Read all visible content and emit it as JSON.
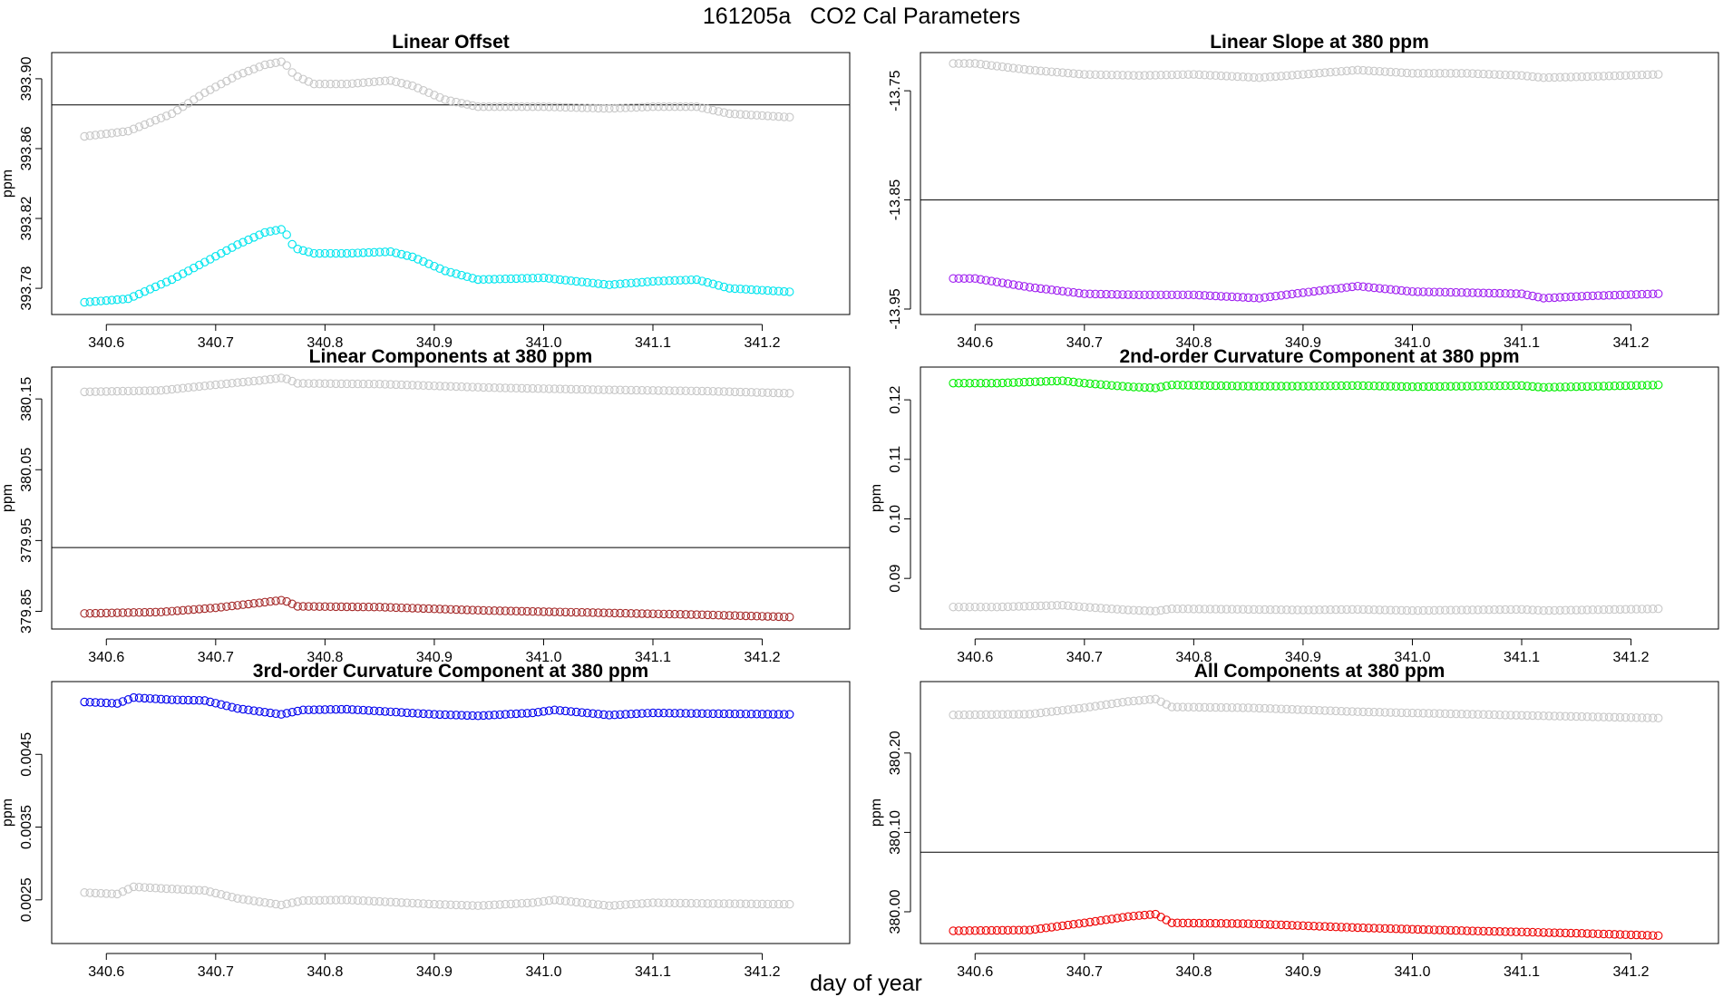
{
  "figure": {
    "title": "161205a   CO2 Cal Parameters",
    "xlabel": "day of year"
  },
  "chart_data": [
    {
      "type": "scatter",
      "title": "Linear Offset",
      "ylabel": "ppm",
      "xlim": [
        340.55,
        341.28
      ],
      "ylim": [
        393.765,
        393.915
      ],
      "x_ticks": [
        340.6,
        340.7,
        340.8,
        340.9,
        341.0,
        341.1,
        341.2
      ],
      "x_tick_labels": [
        "340.6",
        "340.7",
        "340.8",
        "340.9",
        "341.0",
        "341.1",
        "341.2"
      ],
      "y_ticks": [
        393.78,
        393.82,
        393.86,
        393.9
      ],
      "y_tick_labels": [
        "393.78",
        "393.82",
        "393.86",
        "393.90"
      ],
      "hline": 393.885,
      "x_range": [
        340.58,
        341.225
      ],
      "series": [
        {
          "color": "#c8c8c8",
          "shape": [
            [
              340.58,
              393.867
            ],
            [
              340.62,
              393.87
            ],
            [
              340.66,
              393.88
            ],
            [
              340.69,
              393.892
            ],
            [
              340.72,
              393.902
            ],
            [
              340.745,
              393.908
            ],
            [
              340.762,
              393.91
            ],
            [
              340.772,
              393.902
            ],
            [
              340.79,
              393.897
            ],
            [
              340.82,
              393.897
            ],
            [
              340.86,
              393.899
            ],
            [
              340.88,
              393.896
            ],
            [
              340.91,
              393.888
            ],
            [
              340.94,
              393.884
            ],
            [
              341.0,
              393.884
            ],
            [
              341.06,
              393.883
            ],
            [
              341.1,
              393.884
            ],
            [
              341.14,
              393.884
            ],
            [
              341.17,
              393.88
            ],
            [
              341.225,
              393.878
            ]
          ]
        },
        {
          "color": "#00e5ee",
          "shape": [
            [
              340.58,
              393.772
            ],
            [
              340.62,
              393.774
            ],
            [
              340.66,
              393.785
            ],
            [
              340.69,
              393.795
            ],
            [
              340.72,
              393.805
            ],
            [
              340.745,
              393.812
            ],
            [
              340.762,
              393.814
            ],
            [
              340.772,
              393.803
            ],
            [
              340.79,
              393.8
            ],
            [
              340.82,
              393.8
            ],
            [
              340.86,
              393.801
            ],
            [
              340.88,
              393.798
            ],
            [
              340.91,
              393.79
            ],
            [
              340.94,
              393.785
            ],
            [
              341.0,
              393.786
            ],
            [
              341.06,
              393.782
            ],
            [
              341.1,
              393.784
            ],
            [
              341.14,
              393.785
            ],
            [
              341.17,
              393.78
            ],
            [
              341.225,
              393.778
            ]
          ]
        }
      ]
    },
    {
      "type": "scatter",
      "title": "Linear Slope at 380 ppm",
      "ylabel": "",
      "xlim": [
        340.55,
        341.28
      ],
      "ylim": [
        -13.955,
        -13.715
      ],
      "x_ticks": [
        340.6,
        340.7,
        340.8,
        340.9,
        341.0,
        341.1,
        341.2
      ],
      "x_tick_labels": [
        "340.6",
        "340.7",
        "340.8",
        "340.9",
        "341.0",
        "341.1",
        "341.2"
      ],
      "y_ticks": [
        -13.95,
        -13.85,
        -13.75
      ],
      "y_tick_labels": [
        "-13.95",
        "-13.85",
        "-13.75"
      ],
      "hline": -13.85,
      "x_range": [
        340.58,
        341.225
      ],
      "series": [
        {
          "color": "#c8c8c8",
          "shape": [
            [
              340.58,
              -13.725
            ],
            [
              340.6,
              -13.725
            ],
            [
              340.65,
              -13.731
            ],
            [
              340.7,
              -13.735
            ],
            [
              340.75,
              -13.736
            ],
            [
              340.8,
              -13.735
            ],
            [
              340.86,
              -13.738
            ],
            [
              340.9,
              -13.735
            ],
            [
              340.95,
              -13.731
            ],
            [
              341.0,
              -13.734
            ],
            [
              341.05,
              -13.734
            ],
            [
              341.1,
              -13.736
            ],
            [
              341.12,
              -13.738
            ],
            [
              341.16,
              -13.737
            ],
            [
              341.225,
              -13.735
            ]
          ]
        },
        {
          "color": "#a020f0",
          "shape": [
            [
              340.58,
              -13.922
            ],
            [
              340.6,
              -13.922
            ],
            [
              340.65,
              -13.93
            ],
            [
              340.7,
              -13.936
            ],
            [
              340.75,
              -13.937
            ],
            [
              340.8,
              -13.937
            ],
            [
              340.86,
              -13.94
            ],
            [
              340.9,
              -13.935
            ],
            [
              340.95,
              -13.929
            ],
            [
              341.0,
              -13.934
            ],
            [
              341.05,
              -13.935
            ],
            [
              341.1,
              -13.936
            ],
            [
              341.12,
              -13.94
            ],
            [
              341.16,
              -13.938
            ],
            [
              341.225,
              -13.936
            ]
          ]
        }
      ]
    },
    {
      "type": "scatter",
      "title": "Linear Components at 380 ppm",
      "ylabel": "ppm",
      "xlim": [
        340.55,
        341.28
      ],
      "ylim": [
        379.825,
        380.195
      ],
      "x_ticks": [
        340.6,
        340.7,
        340.8,
        340.9,
        341.0,
        341.1,
        341.2
      ],
      "x_tick_labels": [
        "340.6",
        "340.7",
        "340.8",
        "340.9",
        "341.0",
        "341.1",
        "341.2"
      ],
      "y_ticks": [
        379.85,
        379.95,
        380.05,
        380.15
      ],
      "y_tick_labels": [
        "379.85",
        "379.95",
        "380.05",
        "380.15"
      ],
      "hline": 379.94,
      "x_range": [
        340.58,
        341.225
      ],
      "series": [
        {
          "color": "#c8c8c8",
          "shape": [
            [
              340.58,
              380.16
            ],
            [
              340.65,
              380.162
            ],
            [
              340.7,
              380.17
            ],
            [
              340.74,
              380.176
            ],
            [
              340.762,
              380.18
            ],
            [
              340.775,
              380.172
            ],
            [
              340.85,
              380.171
            ],
            [
              340.95,
              380.166
            ],
            [
              341.05,
              380.163
            ],
            [
              341.15,
              380.161
            ],
            [
              341.225,
              380.158
            ]
          ]
        },
        {
          "color": "#a52a2a",
          "shape": [
            [
              340.58,
              379.847
            ],
            [
              340.65,
              379.849
            ],
            [
              340.7,
              379.855
            ],
            [
              340.74,
              379.862
            ],
            [
              340.762,
              379.866
            ],
            [
              340.775,
              379.857
            ],
            [
              340.85,
              379.856
            ],
            [
              340.95,
              379.851
            ],
            [
              341.05,
              379.848
            ],
            [
              341.15,
              379.845
            ],
            [
              341.225,
              379.842
            ]
          ]
        }
      ]
    },
    {
      "type": "scatter",
      "title": "2nd-order Curvature Component at 380 ppm",
      "ylabel": "ppm",
      "xlim": [
        340.55,
        341.28
      ],
      "ylim": [
        0.0815,
        0.1255
      ],
      "x_ticks": [
        340.6,
        340.7,
        340.8,
        340.9,
        341.0,
        341.1,
        341.2
      ],
      "x_tick_labels": [
        "340.6",
        "340.7",
        "340.8",
        "340.9",
        "341.0",
        "341.1",
        "341.2"
      ],
      "y_ticks": [
        0.09,
        0.1,
        0.11,
        0.12
      ],
      "y_tick_labels": [
        "0.09",
        "0.10",
        "0.11",
        "0.12"
      ],
      "hline": null,
      "x_range": [
        340.58,
        341.225
      ],
      "series": [
        {
          "color": "#00ee00",
          "shape": [
            [
              340.58,
              0.1228
            ],
            [
              340.62,
              0.1228
            ],
            [
              340.68,
              0.1232
            ],
            [
              340.7,
              0.1228
            ],
            [
              340.74,
              0.1222
            ],
            [
              340.765,
              0.122
            ],
            [
              340.78,
              0.1225
            ],
            [
              340.85,
              0.1223
            ],
            [
              340.9,
              0.1223
            ],
            [
              340.95,
              0.1224
            ],
            [
              341.0,
              0.1222
            ],
            [
              341.05,
              0.1223
            ],
            [
              341.1,
              0.1224
            ],
            [
              341.12,
              0.1221
            ],
            [
              341.225,
              0.1225
            ]
          ]
        },
        {
          "color": "#c8c8c8",
          "shape": [
            [
              340.58,
              0.0852
            ],
            [
              340.62,
              0.0852
            ],
            [
              340.68,
              0.0855
            ],
            [
              340.7,
              0.0852
            ],
            [
              340.74,
              0.0847
            ],
            [
              340.765,
              0.0845
            ],
            [
              340.78,
              0.0849
            ],
            [
              340.85,
              0.0848
            ],
            [
              340.9,
              0.0847
            ],
            [
              340.95,
              0.0848
            ],
            [
              341.0,
              0.0846
            ],
            [
              341.05,
              0.0847
            ],
            [
              341.1,
              0.0848
            ],
            [
              341.12,
              0.0846
            ],
            [
              341.225,
              0.0849
            ]
          ]
        }
      ]
    },
    {
      "type": "scatter",
      "title": "3rd-order Curvature Component at 380 ppm",
      "ylabel": "ppm",
      "xlim": [
        340.55,
        341.28
      ],
      "ylim": [
        0.0019,
        0.0055
      ],
      "x_ticks": [
        340.6,
        340.7,
        340.8,
        340.9,
        341.0,
        341.1,
        341.2
      ],
      "x_tick_labels": [
        "340.6",
        "340.7",
        "340.8",
        "340.9",
        "341.0",
        "341.1",
        "341.2"
      ],
      "y_ticks": [
        0.0025,
        0.0035,
        0.0045
      ],
      "y_tick_labels": [
        "0.0025",
        "0.0035",
        "0.0045"
      ],
      "hline": null,
      "x_range": [
        340.58,
        341.225
      ],
      "series": [
        {
          "color": "#0000ee",
          "shape": [
            [
              340.58,
              0.00522
            ],
            [
              340.61,
              0.0052
            ],
            [
              340.625,
              0.00528
            ],
            [
              340.66,
              0.00525
            ],
            [
              340.69,
              0.00524
            ],
            [
              340.72,
              0.00513
            ],
            [
              340.76,
              0.00505
            ],
            [
              340.78,
              0.00511
            ],
            [
              340.82,
              0.00512
            ],
            [
              340.9,
              0.00505
            ],
            [
              340.94,
              0.00503
            ],
            [
              340.99,
              0.00507
            ],
            [
              341.01,
              0.00511
            ],
            [
              341.06,
              0.00504
            ],
            [
              341.1,
              0.00507
            ],
            [
              341.15,
              0.00506
            ],
            [
              341.225,
              0.00505
            ]
          ]
        },
        {
          "color": "#c8c8c8",
          "shape": [
            [
              340.58,
              0.0026
            ],
            [
              340.61,
              0.00258
            ],
            [
              340.625,
              0.00268
            ],
            [
              340.66,
              0.00265
            ],
            [
              340.69,
              0.00263
            ],
            [
              340.72,
              0.00252
            ],
            [
              340.76,
              0.00243
            ],
            [
              340.78,
              0.00249
            ],
            [
              340.82,
              0.0025
            ],
            [
              340.9,
              0.00244
            ],
            [
              340.94,
              0.00242
            ],
            [
              340.99,
              0.00246
            ],
            [
              341.01,
              0.0025
            ],
            [
              341.06,
              0.00242
            ],
            [
              341.1,
              0.00246
            ],
            [
              341.15,
              0.00245
            ],
            [
              341.225,
              0.00244
            ]
          ]
        }
      ]
    },
    {
      "type": "scatter",
      "title": "All Components at 380 ppm",
      "ylabel": "ppm",
      "xlim": [
        340.55,
        341.28
      ],
      "ylim": [
        379.96,
        380.29
      ],
      "x_ticks": [
        340.6,
        340.7,
        340.8,
        340.9,
        341.0,
        341.1,
        341.2
      ],
      "x_tick_labels": [
        "340.6",
        "340.7",
        "340.8",
        "340.9",
        "341.0",
        "341.1",
        "341.2"
      ],
      "y_ticks": [
        380.0,
        380.1,
        380.2
      ],
      "y_tick_labels": [
        "380.00",
        "380.10",
        "380.20"
      ],
      "hline": 380.075,
      "x_range": [
        340.58,
        341.225
      ],
      "series": [
        {
          "color": "#c8c8c8",
          "shape": [
            [
              340.58,
              380.248
            ],
            [
              340.65,
              380.249
            ],
            [
              340.7,
              380.257
            ],
            [
              340.74,
              380.265
            ],
            [
              340.765,
              380.268
            ],
            [
              340.78,
              380.258
            ],
            [
              340.85,
              380.257
            ],
            [
              340.95,
              380.252
            ],
            [
              341.05,
              380.249
            ],
            [
              341.15,
              380.246
            ],
            [
              341.225,
              380.244
            ]
          ]
        },
        {
          "color": "#ee0000",
          "shape": [
            [
              340.58,
              379.976
            ],
            [
              340.65,
              379.977
            ],
            [
              340.7,
              379.986
            ],
            [
              340.74,
              379.994
            ],
            [
              340.765,
              379.997
            ],
            [
              340.78,
              379.986
            ],
            [
              340.85,
              379.985
            ],
            [
              340.95,
              379.98
            ],
            [
              341.05,
              379.976
            ],
            [
              341.15,
              379.973
            ],
            [
              341.225,
              379.97
            ]
          ]
        }
      ]
    }
  ]
}
